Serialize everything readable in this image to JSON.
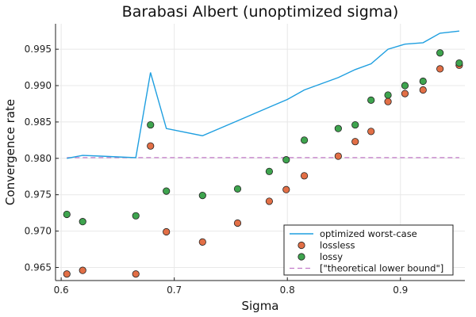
{
  "chart_data": {
    "type": "line",
    "title": "Barabasi Albert (unoptimized sigma)",
    "xlabel": "Sigma",
    "ylabel": "Convergence rate",
    "xlim": [
      0.595,
      0.957
    ],
    "ylim": [
      0.9632,
      0.9985
    ],
    "xticks": [
      0.6,
      0.7,
      0.8,
      0.9
    ],
    "xtick_labels": [
      "0.6",
      "0.7",
      "0.8",
      "0.9"
    ],
    "yticks": [
      0.965,
      0.97,
      0.975,
      0.98,
      0.985,
      0.99,
      0.995
    ],
    "ytick_labels": [
      "0.965",
      "0.970",
      "0.975",
      "0.980",
      "0.985",
      "0.990",
      "0.995"
    ],
    "grid": true,
    "legend_position": "bottom-right",
    "series": [
      {
        "name": "optimized worst-case",
        "kind": "line",
        "color": "#1f9fe0",
        "x": [
          0.605,
          0.619,
          0.635,
          0.65,
          0.666,
          0.679,
          0.693,
          0.725,
          0.755,
          0.785,
          0.8,
          0.815,
          0.845,
          0.86,
          0.874,
          0.889,
          0.904,
          0.92,
          0.935,
          0.952
        ],
        "y": [
          0.98,
          0.9804,
          0.9803,
          0.9802,
          0.9801,
          0.9918,
          0.9841,
          0.9831,
          0.9851,
          0.9871,
          0.9881,
          0.9894,
          0.9911,
          0.9922,
          0.993,
          0.995,
          0.9957,
          0.9959,
          0.9972,
          0.9975
        ]
      },
      {
        "name": "lossless",
        "kind": "scatter",
        "color": "#e26f46",
        "x": [
          0.605,
          0.619,
          0.666,
          0.679,
          0.693,
          0.725,
          0.756,
          0.784,
          0.799,
          0.815,
          0.845,
          0.86,
          0.874,
          0.889,
          0.904,
          0.92,
          0.935,
          0.952
        ],
        "y": [
          0.9641,
          0.9646,
          0.9641,
          0.9817,
          0.9699,
          0.9685,
          0.9711,
          0.9741,
          0.9757,
          0.9776,
          0.9803,
          0.9823,
          0.9837,
          0.9878,
          0.9889,
          0.9894,
          0.9923,
          0.9928
        ]
      },
      {
        "name": "lossy",
        "kind": "scatter",
        "color": "#3ea44e",
        "x": [
          0.605,
          0.619,
          0.666,
          0.679,
          0.693,
          0.725,
          0.756,
          0.784,
          0.799,
          0.815,
          0.845,
          0.86,
          0.874,
          0.889,
          0.904,
          0.92,
          0.935,
          0.952
        ],
        "y": [
          0.9723,
          0.9713,
          0.9721,
          0.9846,
          0.9755,
          0.9749,
          0.9758,
          0.9782,
          0.9798,
          0.9825,
          0.9841,
          0.9846,
          0.988,
          0.9887,
          0.99,
          0.9906,
          0.9945,
          0.9931
        ]
      },
      {
        "name": "[\"theoretical lower bound\"]",
        "kind": "dashed",
        "color": "#c27ac9",
        "x": [
          0.605,
          0.952
        ],
        "y": [
          0.9801,
          0.9801
        ]
      }
    ]
  }
}
